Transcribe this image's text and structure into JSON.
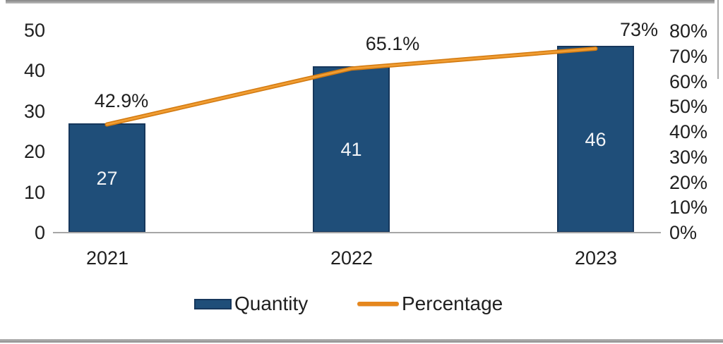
{
  "chart_data": {
    "type": "bar",
    "subtype": "combo-bar-line",
    "title": "",
    "xlabel": "",
    "ylabel": "",
    "categories": [
      "2021",
      "2022",
      "2023"
    ],
    "series": [
      {
        "name": "Quantity",
        "kind": "bar",
        "axis": "left",
        "values": [
          27,
          41,
          46
        ],
        "value_labels": [
          "27",
          "41",
          "46"
        ],
        "color": "#1f4e79"
      },
      {
        "name": "Percentage",
        "kind": "line",
        "axis": "right",
        "values": [
          42.9,
          65.1,
          73
        ],
        "value_labels": [
          "42.9%",
          "65.1%",
          "73%"
        ],
        "color": "#e5871e"
      }
    ],
    "left_axis": {
      "range": [
        0,
        50
      ],
      "ticks": [
        "0",
        "10",
        "20",
        "30",
        "40",
        "50"
      ],
      "grid": false
    },
    "right_axis": {
      "range": [
        0,
        80
      ],
      "ticks": [
        "0%",
        "10%",
        "20%",
        "30%",
        "40%",
        "50%",
        "60%",
        "70%",
        "80%"
      ]
    },
    "legend": {
      "position": "bottom",
      "items": [
        {
          "label": "Quantity",
          "swatch": "bar",
          "color": "#1f4e79"
        },
        {
          "label": "Percentage",
          "swatch": "line",
          "color": "#e5871e"
        }
      ]
    },
    "colors": {
      "bar_fill": "#1f4e79",
      "bar_border": "#16375c",
      "line": "#e5871e",
      "axis_text": "#1f1f1f",
      "baseline": "#a6a6a6"
    }
  }
}
